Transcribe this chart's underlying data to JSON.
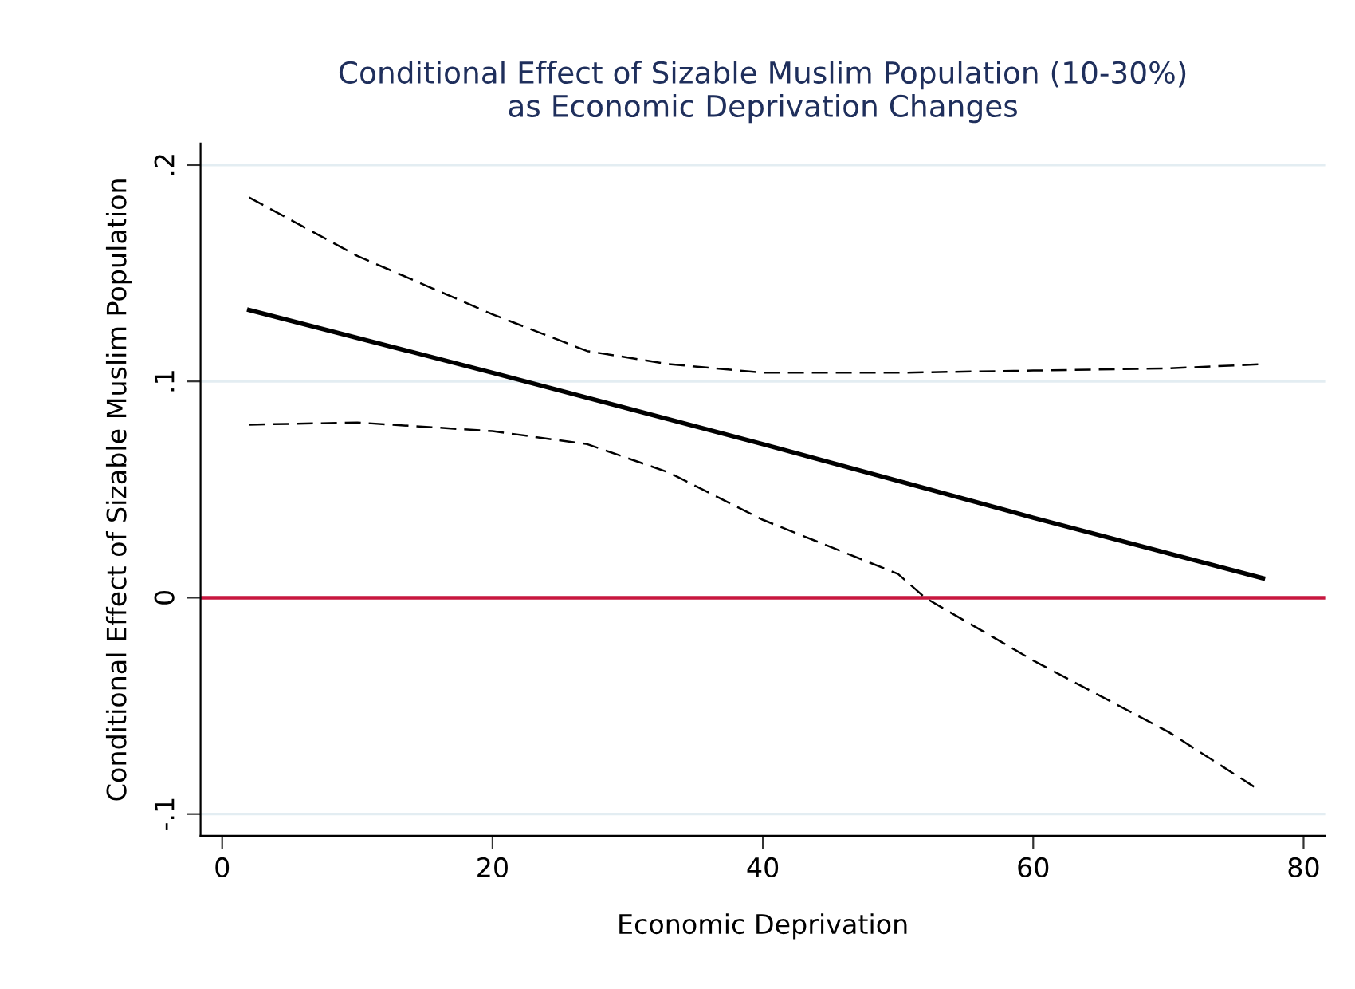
{
  "chart_data": {
    "type": "line",
    "title": "Conditional Effect of Sizable Muslim Population (10-30%)\nas Economic Deprivation Changes",
    "xlabel": "Economic Deprivation",
    "ylabel": "Conditional Effect of Sizable Muslim Population",
    "xlim": [
      -1.6,
      81.6
    ],
    "xticks": [
      0,
      20,
      40,
      60,
      80
    ],
    "ylim": [
      -0.11,
      0.21
    ],
    "yticks": [
      {
        "value": -0.1,
        "label": "-.1"
      },
      {
        "value": 0,
        "label": "0"
      },
      {
        "value": 0.1,
        "label": ".1"
      },
      {
        "value": 0.2,
        "label": ".2"
      }
    ],
    "grid": "y",
    "legend": false,
    "marker": "none",
    "series": [
      {
        "color": "#000000",
        "line_style": "solid",
        "x": [
          2,
          20,
          40,
          60,
          77
        ],
        "values": [
          0.133,
          0.104,
          0.071,
          0.037,
          0.009
        ]
      },
      {
        "color": "#000000",
        "line_style": "dashed",
        "x": [
          2,
          10,
          20,
          27,
          33,
          40,
          50,
          60,
          70,
          77
        ],
        "values": [
          0.185,
          0.158,
          0.131,
          0.114,
          0.108,
          0.104,
          0.104,
          0.105,
          0.106,
          0.108
        ]
      },
      {
        "color": "#000000",
        "line_style": "dashed",
        "x": [
          2,
          10,
          20,
          27,
          33,
          40,
          50,
          52,
          60,
          70,
          76.5
        ],
        "values": [
          0.08,
          0.081,
          0.077,
          0.071,
          0.058,
          0.036,
          0.011,
          0.0,
          -0.029,
          -0.062,
          -0.088
        ]
      }
    ],
    "ref_lines": [
      {
        "axis": "y",
        "value": 0,
        "color": "#c8173f",
        "line_style": "solid"
      }
    ]
  }
}
